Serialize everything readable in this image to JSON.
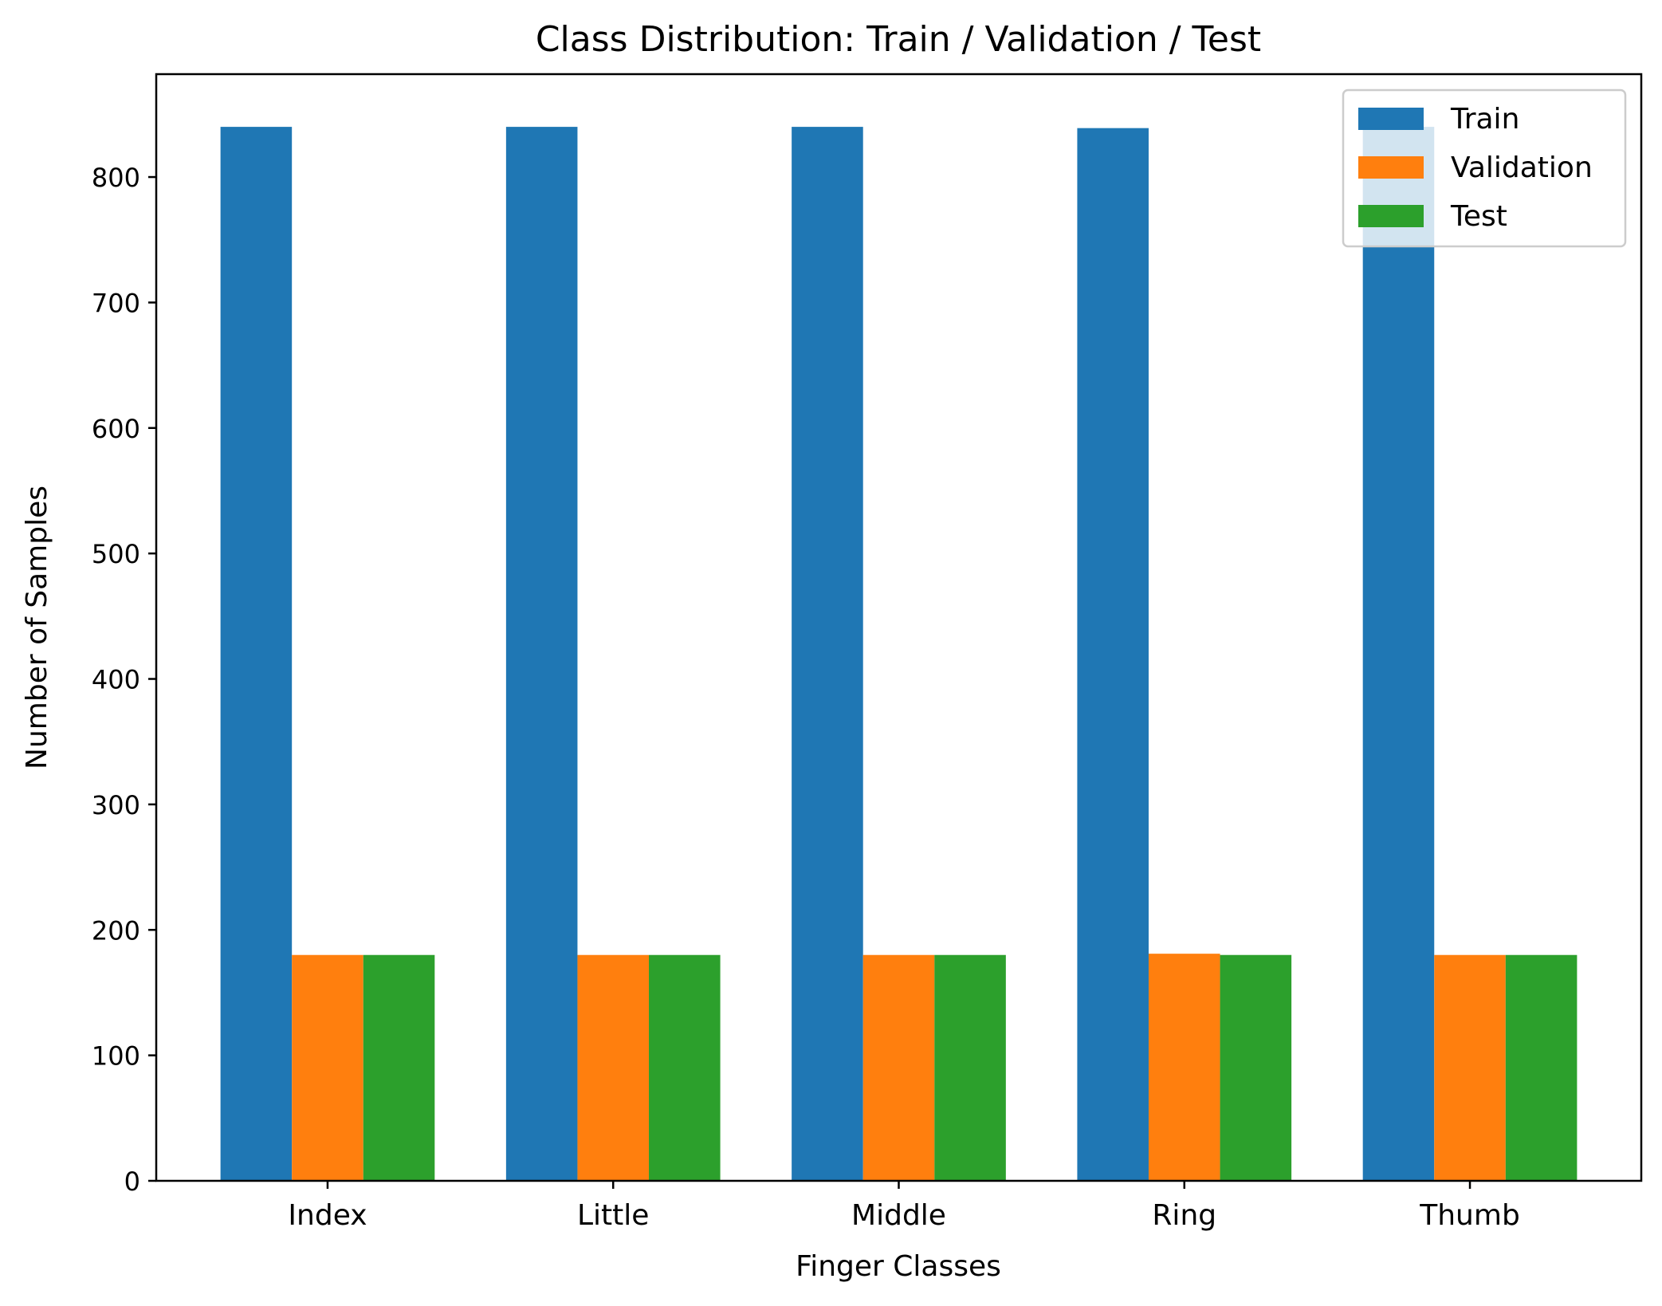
{
  "chart_data": {
    "type": "bar",
    "title": "Class Distribution: Train / Validation / Test",
    "xlabel": "Finger Classes",
    "ylabel": "Number of Samples",
    "categories": [
      "Index",
      "Little",
      "Middle",
      "Ring",
      "Thumb"
    ],
    "series": [
      {
        "name": "Train",
        "color": "#1f77b4",
        "values": [
          840,
          840,
          840,
          839,
          840
        ]
      },
      {
        "name": "Validation",
        "color": "#ff7f0e",
        "values": [
          180,
          180,
          180,
          181,
          180
        ]
      },
      {
        "name": "Test",
        "color": "#2ca02c",
        "values": [
          180,
          180,
          180,
          180,
          180
        ]
      }
    ],
    "ylim": [
      0,
      882
    ],
    "yticks": [
      0,
      100,
      200,
      300,
      400,
      500,
      600,
      700,
      800
    ],
    "grid": false,
    "legend_position": "top-right"
  }
}
